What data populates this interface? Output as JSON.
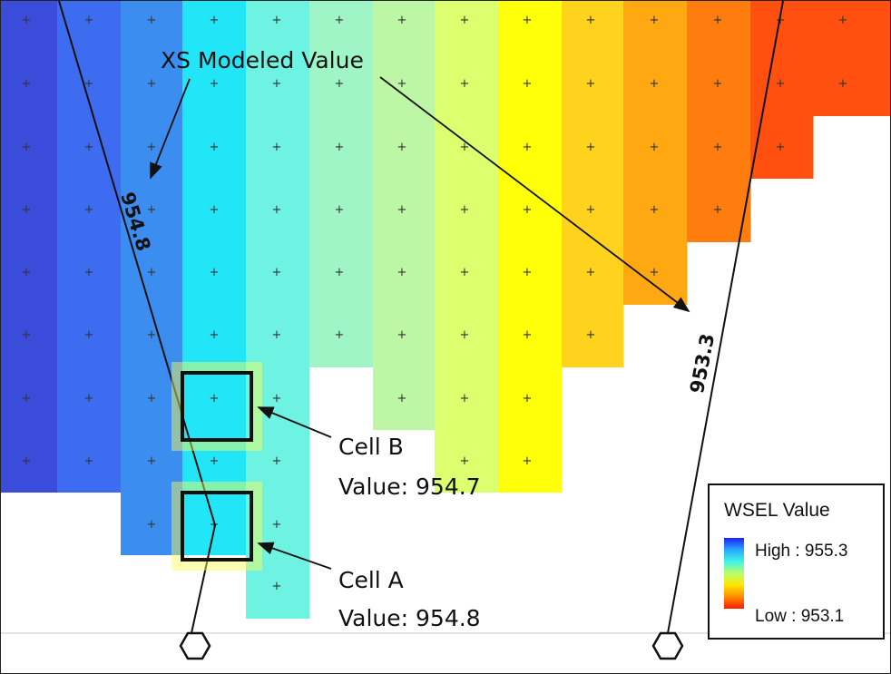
{
  "map": {
    "callout_xs": "XS Modeled Value",
    "callout_cell_b_name": "Cell B",
    "callout_cell_b_value": "Value: 954.7",
    "callout_cell_a_name": "Cell A",
    "callout_cell_a_value": "Value: 954.8",
    "xs_left_value": "954.8",
    "xs_right_value": "953.3"
  },
  "legend": {
    "title": "WSEL Value",
    "high_label": "High : 955.3",
    "low_label": "Low : 953.1"
  },
  "colors": {
    "ramp": [
      "#3a4cd9",
      "#3e6cf0",
      "#3c8df0",
      "#22e6f8",
      "#6ef3e2",
      "#a0f5c6",
      "#bdf7a6",
      "#dcff70",
      "#ffff0a",
      "#ffd21e",
      "#ffa812",
      "#ff7c0e",
      "#ff5010"
    ]
  }
}
